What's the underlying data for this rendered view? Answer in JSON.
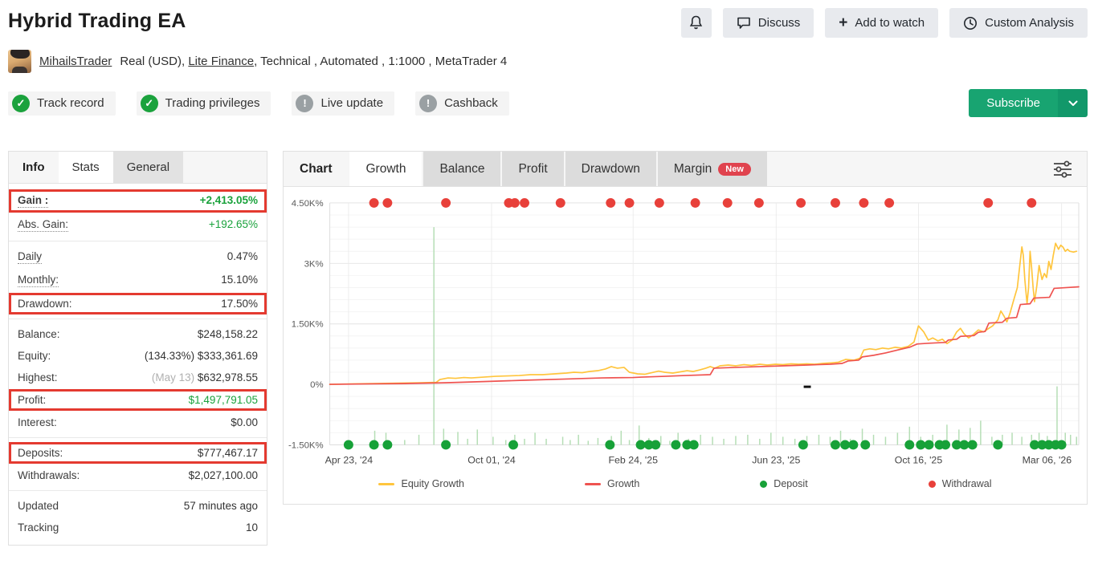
{
  "header": {
    "title": "Hybrid Trading EA",
    "discuss": "Discuss",
    "add_to_watch": "Add to watch",
    "custom_analysis": "Custom Analysis"
  },
  "profile": {
    "username": "MihailsTrader",
    "pre_broker": "Real (USD),",
    "broker": "Lite Finance",
    "post_broker": ", Technical , Automated , 1:1000 , MetaTrader 4"
  },
  "badges": [
    {
      "label": "Track record",
      "status": "ok"
    },
    {
      "label": "Trading privileges",
      "status": "ok"
    },
    {
      "label": "Live update",
      "status": "warn"
    },
    {
      "label": "Cashback",
      "status": "warn"
    }
  ],
  "subscribe": {
    "label": "Subscribe"
  },
  "stats_panel": {
    "tabs": [
      {
        "label": "Info",
        "style": "bold"
      },
      {
        "label": "Stats",
        "style": "active"
      },
      {
        "label": "General",
        "style": "gray"
      }
    ],
    "groups": [
      [
        {
          "label": "Gain :",
          "value": "+2,413.05%",
          "green": true,
          "bold": true,
          "dotted": true,
          "highlight": true
        },
        {
          "label": "Abs. Gain:",
          "value": "+192.65%",
          "green": true,
          "dotted": true
        }
      ],
      [
        {
          "label": "Daily",
          "value": "0.47%",
          "dotted": true
        },
        {
          "label": "Monthly:",
          "value": "15.10%",
          "dotted": true
        },
        {
          "label": "Drawdown:",
          "value": "17.50%",
          "highlight": true
        }
      ],
      [
        {
          "label": "Balance:",
          "value": "$248,158.22"
        },
        {
          "label": "Equity:",
          "value": "$333,361.69",
          "prefix": "(134.33%) "
        },
        {
          "label": "Highest:",
          "value": "$632,978.55",
          "prefix": "(May 13) ",
          "prefix_gray": true
        },
        {
          "label": "Profit:",
          "value": "$1,497,791.05",
          "green": true,
          "highlight": true
        },
        {
          "label": "Interest:",
          "value": "$0.00"
        }
      ],
      [
        {
          "label": "Deposits:",
          "value": "$777,467.17",
          "highlight": true
        },
        {
          "label": "Withdrawals:",
          "value": "$2,027,100.00"
        }
      ],
      [
        {
          "label": "Updated",
          "value": "57 minutes ago"
        },
        {
          "label": "Tracking",
          "value": "10"
        }
      ]
    ]
  },
  "chart_panel": {
    "tabs": [
      {
        "label": "Chart",
        "style": "bold"
      },
      {
        "label": "Growth",
        "style": "active"
      },
      {
        "label": "Balance",
        "style": "gray"
      },
      {
        "label": "Profit",
        "style": "gray"
      },
      {
        "label": "Drawdown",
        "style": "gray"
      },
      {
        "label": "Margin",
        "style": "gray",
        "badge": "New"
      }
    ]
  },
  "chart_data": {
    "type": "line",
    "title": "Growth chart",
    "ylim": [
      -1.5,
      4.5
    ],
    "y_ticks": [
      {
        "v": 4.5,
        "label": "4.50K%"
      },
      {
        "v": 3,
        "label": "3K%"
      },
      {
        "v": 1.5,
        "label": "1.50K%"
      },
      {
        "v": 0,
        "label": "0%"
      },
      {
        "v": -1.5,
        "label": "-1.50K%"
      }
    ],
    "y_minor_step": 0.3,
    "x_ticks": [
      {
        "f": 0.025,
        "label": "Apr 23, '24"
      },
      {
        "f": 0.216,
        "label": "Oct 01, '24"
      },
      {
        "f": 0.405,
        "label": "Feb 24, '25"
      },
      {
        "f": 0.596,
        "label": "Jun 23, '25"
      },
      {
        "f": 0.786,
        "label": "Oct 16, '25"
      },
      {
        "f": 0.977,
        "label": "Mar 06, '26"
      }
    ],
    "colors": {
      "equity_line": "#FFC53D",
      "growth_line": "#EF5350",
      "deposit": "#17a138",
      "withdrawal": "#e8403a",
      "bar": "#b5deb5",
      "grid_major": "#e3e3e3",
      "grid_minor": "#f4f4f4",
      "grid_vert": "#ececec",
      "axis": "#dddddd"
    },
    "series": [
      {
        "name": "Equity Growth",
        "color": "#FFC53D",
        "points": [
          [
            0.0,
            0.0
          ],
          [
            0.026,
            0.01
          ],
          [
            0.058,
            0.02
          ],
          [
            0.089,
            0.03
          ],
          [
            0.121,
            0.04
          ],
          [
            0.142,
            0.05
          ],
          [
            0.147,
            0.12
          ],
          [
            0.158,
            0.16
          ],
          [
            0.168,
            0.15
          ],
          [
            0.179,
            0.17
          ],
          [
            0.189,
            0.16
          ],
          [
            0.205,
            0.18
          ],
          [
            0.221,
            0.2
          ],
          [
            0.237,
            0.21
          ],
          [
            0.253,
            0.22
          ],
          [
            0.268,
            0.24
          ],
          [
            0.284,
            0.24
          ],
          [
            0.3,
            0.26
          ],
          [
            0.316,
            0.28
          ],
          [
            0.326,
            0.3
          ],
          [
            0.337,
            0.29
          ],
          [
            0.347,
            0.32
          ],
          [
            0.358,
            0.34
          ],
          [
            0.368,
            0.38
          ],
          [
            0.376,
            0.44
          ],
          [
            0.384,
            0.4
          ],
          [
            0.393,
            0.42
          ],
          [
            0.4,
            0.3
          ],
          [
            0.411,
            0.26
          ],
          [
            0.421,
            0.25
          ],
          [
            0.432,
            0.3
          ],
          [
            0.439,
            0.33
          ],
          [
            0.447,
            0.3
          ],
          [
            0.458,
            0.28
          ],
          [
            0.468,
            0.31
          ],
          [
            0.477,
            0.34
          ],
          [
            0.485,
            0.32
          ],
          [
            0.494,
            0.36
          ],
          [
            0.502,
            0.4
          ],
          [
            0.508,
            0.44
          ],
          [
            0.514,
            0.4
          ],
          [
            0.521,
            0.46
          ],
          [
            0.532,
            0.48
          ],
          [
            0.542,
            0.46
          ],
          [
            0.553,
            0.49
          ],
          [
            0.563,
            0.47
          ],
          [
            0.574,
            0.5
          ],
          [
            0.584,
            0.48
          ],
          [
            0.595,
            0.5
          ],
          [
            0.605,
            0.49
          ],
          [
            0.616,
            0.51
          ],
          [
            0.626,
            0.5
          ],
          [
            0.637,
            0.51
          ],
          [
            0.647,
            0.5
          ],
          [
            0.658,
            0.52
          ],
          [
            0.668,
            0.53
          ],
          [
            0.679,
            0.55
          ],
          [
            0.689,
            0.62
          ],
          [
            0.7,
            0.6
          ],
          [
            0.708,
            0.65
          ],
          [
            0.713,
            0.85
          ],
          [
            0.721,
            0.88
          ],
          [
            0.729,
            0.86
          ],
          [
            0.738,
            0.9
          ],
          [
            0.746,
            0.88
          ],
          [
            0.755,
            0.92
          ],
          [
            0.763,
            0.9
          ],
          [
            0.772,
            0.94
          ],
          [
            0.78,
            1.05
          ],
          [
            0.786,
            1.45
          ],
          [
            0.793,
            1.3
          ],
          [
            0.799,
            1.1
          ],
          [
            0.805,
            1.15
          ],
          [
            0.812,
            1.08
          ],
          [
            0.818,
            1.12
          ],
          [
            0.824,
            1.01
          ],
          [
            0.831,
            1.1
          ],
          [
            0.837,
            1.3
          ],
          [
            0.842,
            1.39
          ],
          [
            0.847,
            1.25
          ],
          [
            0.853,
            1.15
          ],
          [
            0.86,
            1.25
          ],
          [
            0.866,
            1.35
          ],
          [
            0.873,
            1.3
          ],
          [
            0.879,
            1.38
          ],
          [
            0.885,
            1.45
          ],
          [
            0.892,
            1.6
          ],
          [
            0.896,
            1.82
          ],
          [
            0.9,
            1.7
          ],
          [
            0.904,
            1.55
          ],
          [
            0.908,
            1.75
          ],
          [
            0.913,
            2.08
          ],
          [
            0.918,
            2.4
          ],
          [
            0.921,
            2.9
          ],
          [
            0.924,
            3.41
          ],
          [
            0.926,
            3.2
          ],
          [
            0.928,
            2.6
          ],
          [
            0.931,
            2.0
          ],
          [
            0.933,
            2.4
          ],
          [
            0.935,
            3.3
          ],
          [
            0.937,
            2.9
          ],
          [
            0.939,
            2.4
          ],
          [
            0.941,
            2.05
          ],
          [
            0.944,
            2.45
          ],
          [
            0.947,
            2.95
          ],
          [
            0.951,
            2.6
          ],
          [
            0.954,
            2.75
          ],
          [
            0.957,
            2.65
          ],
          [
            0.96,
            3.05
          ],
          [
            0.963,
            2.85
          ],
          [
            0.966,
            3.2
          ],
          [
            0.969,
            3.5
          ],
          [
            0.973,
            3.35
          ],
          [
            0.976,
            3.45
          ],
          [
            0.979,
            3.4
          ],
          [
            0.982,
            3.3
          ],
          [
            0.985,
            3.35
          ],
          [
            0.988,
            3.3
          ],
          [
            0.993,
            3.28
          ],
          [
            0.997,
            3.3
          ]
        ]
      },
      {
        "name": "Growth",
        "color": "#EF5350",
        "points": [
          [
            0.0,
            0.0
          ],
          [
            0.047,
            0.01
          ],
          [
            0.1,
            0.02
          ],
          [
            0.153,
            0.04
          ],
          [
            0.205,
            0.07
          ],
          [
            0.258,
            0.1
          ],
          [
            0.311,
            0.13
          ],
          [
            0.363,
            0.16
          ],
          [
            0.405,
            0.17
          ],
          [
            0.416,
            0.18
          ],
          [
            0.447,
            0.2
          ],
          [
            0.474,
            0.22
          ],
          [
            0.508,
            0.24
          ],
          [
            0.513,
            0.4
          ],
          [
            0.542,
            0.42
          ],
          [
            0.574,
            0.44
          ],
          [
            0.605,
            0.46
          ],
          [
            0.637,
            0.48
          ],
          [
            0.668,
            0.5
          ],
          [
            0.684,
            0.52
          ],
          [
            0.692,
            0.58
          ],
          [
            0.706,
            0.6
          ],
          [
            0.711,
            0.68
          ],
          [
            0.726,
            0.72
          ],
          [
            0.742,
            0.78
          ],
          [
            0.758,
            0.85
          ],
          [
            0.774,
            0.92
          ],
          [
            0.784,
            1.0
          ],
          [
            0.8,
            1.02
          ],
          [
            0.822,
            1.04
          ],
          [
            0.826,
            1.1
          ],
          [
            0.837,
            1.12
          ],
          [
            0.842,
            1.19
          ],
          [
            0.86,
            1.21
          ],
          [
            0.866,
            1.29
          ],
          [
            0.875,
            1.31
          ],
          [
            0.88,
            1.52
          ],
          [
            0.898,
            1.54
          ],
          [
            0.904,
            1.64
          ],
          [
            0.917,
            1.66
          ],
          [
            0.922,
            1.98
          ],
          [
            0.935,
            2.0
          ],
          [
            0.94,
            2.14
          ],
          [
            0.961,
            2.16
          ],
          [
            0.967,
            2.38
          ],
          [
            0.984,
            2.4
          ],
          [
            1.0,
            2.42
          ]
        ]
      }
    ],
    "bars": [
      [
        0.06,
        -1.15
      ],
      [
        0.075,
        -1.2
      ],
      [
        0.1,
        -1.38
      ],
      [
        0.119,
        -1.25
      ],
      [
        0.139,
        3.9
      ],
      [
        0.152,
        -1.1
      ],
      [
        0.171,
        -1.18
      ],
      [
        0.184,
        -1.35
      ],
      [
        0.197,
        -1.12
      ],
      [
        0.218,
        -1.3
      ],
      [
        0.235,
        -1.38
      ],
      [
        0.247,
        -1.25
      ],
      [
        0.26,
        -1.35
      ],
      [
        0.274,
        -1.2
      ],
      [
        0.289,
        -1.35
      ],
      [
        0.311,
        -1.3
      ],
      [
        0.321,
        -1.38
      ],
      [
        0.332,
        -1.25
      ],
      [
        0.345,
        -1.4
      ],
      [
        0.358,
        -1.33
      ],
      [
        0.376,
        -1.28
      ],
      [
        0.389,
        -1.15
      ],
      [
        0.4,
        -1.38
      ],
      [
        0.413,
        -1.02
      ],
      [
        0.426,
        -1.33
      ],
      [
        0.442,
        -1.28
      ],
      [
        0.454,
        -1.4
      ],
      [
        0.465,
        -1.2
      ],
      [
        0.479,
        -1.35
      ],
      [
        0.495,
        -1.25
      ],
      [
        0.511,
        -1.3
      ],
      [
        0.526,
        -1.35
      ],
      [
        0.542,
        -1.28
      ],
      [
        0.558,
        -1.25
      ],
      [
        0.574,
        -1.35
      ],
      [
        0.589,
        -1.2
      ],
      [
        0.605,
        -1.3
      ],
      [
        0.621,
        -1.35
      ],
      [
        0.637,
        -1.28
      ],
      [
        0.653,
        -1.25
      ],
      [
        0.668,
        -1.3
      ],
      [
        0.682,
        -1.15
      ],
      [
        0.695,
        -1.35
      ],
      [
        0.711,
        -1.1
      ],
      [
        0.726,
        -1.25
      ],
      [
        0.742,
        -1.3
      ],
      [
        0.758,
        -1.2
      ],
      [
        0.774,
        -1.05
      ],
      [
        0.789,
        -1.3
      ],
      [
        0.805,
        -1.25
      ],
      [
        0.824,
        -1.0
      ],
      [
        0.84,
        -1.12
      ],
      [
        0.855,
        -1.08
      ],
      [
        0.869,
        -0.9
      ],
      [
        0.884,
        -1.3
      ],
      [
        0.898,
        -1.25
      ],
      [
        0.911,
        -1.2
      ],
      [
        0.924,
        -1.3
      ],
      [
        0.937,
        -1.25
      ],
      [
        0.947,
        -1.2
      ],
      [
        0.958,
        -1.28
      ],
      [
        0.971,
        -0.05
      ],
      [
        0.982,
        -1.2
      ],
      [
        0.989,
        -1.25
      ],
      [
        0.997,
        -1.3
      ]
    ],
    "deposits_x": [
      0.025,
      0.059,
      0.077,
      0.155,
      0.245,
      0.374,
      0.415,
      0.426,
      0.435,
      0.462,
      0.477,
      0.486,
      0.632,
      0.675,
      0.688,
      0.699,
      0.715,
      0.774,
      0.789,
      0.8,
      0.814,
      0.822,
      0.837,
      0.847,
      0.858,
      0.892,
      0.941,
      0.951,
      0.96,
      0.969,
      0.977
    ],
    "withdrawals_x": [
      0.059,
      0.077,
      0.155,
      0.239,
      0.247,
      0.26,
      0.308,
      0.375,
      0.4,
      0.44,
      0.488,
      0.531,
      0.573,
      0.629,
      0.675,
      0.713,
      0.747,
      0.879,
      0.937
    ],
    "annotation_dash": {
      "f": 0.637,
      "v": -0.05
    },
    "legend": [
      {
        "label": "Equity Growth",
        "type": "line",
        "color": "#FFC53D"
      },
      {
        "label": "Growth",
        "type": "line",
        "color": "#EF5350"
      },
      {
        "label": "Deposit",
        "type": "dot",
        "color": "#17a138"
      },
      {
        "label": "Withdrawal",
        "type": "dot",
        "color": "#e8403a"
      }
    ]
  }
}
